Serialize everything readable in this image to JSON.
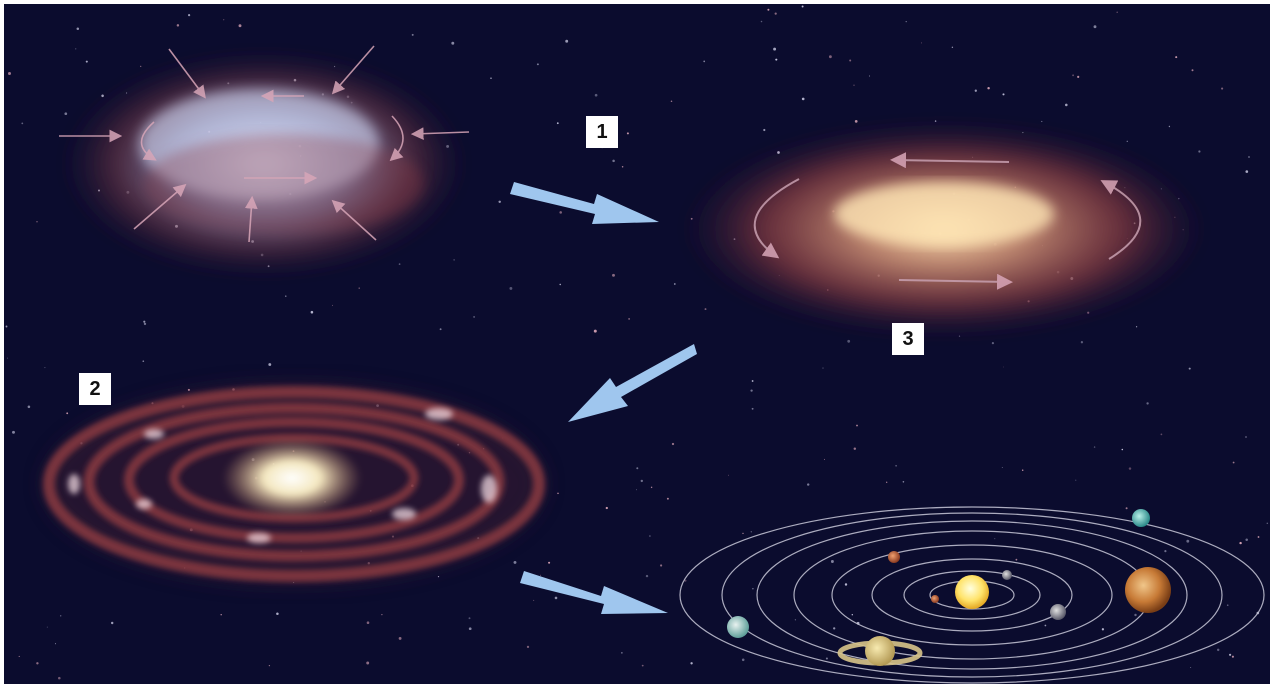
{
  "stages": [
    {
      "id": "collapsing-cloud",
      "label": ""
    },
    {
      "id": "rotating-disk",
      "label": ""
    },
    {
      "id": "ring-nebula",
      "label": ""
    },
    {
      "id": "solar-system",
      "label": ""
    }
  ],
  "labels": {
    "step_one": "1",
    "step_two": "2",
    "step_three": "3"
  },
  "colors": {
    "space": "#0b0c2e",
    "arrow": "#9fc6ee",
    "nebula_red": "#8a3a3f",
    "glow": "#fff3c8",
    "label_bg": "#ffffff",
    "orbit": "#c9c9d9"
  }
}
